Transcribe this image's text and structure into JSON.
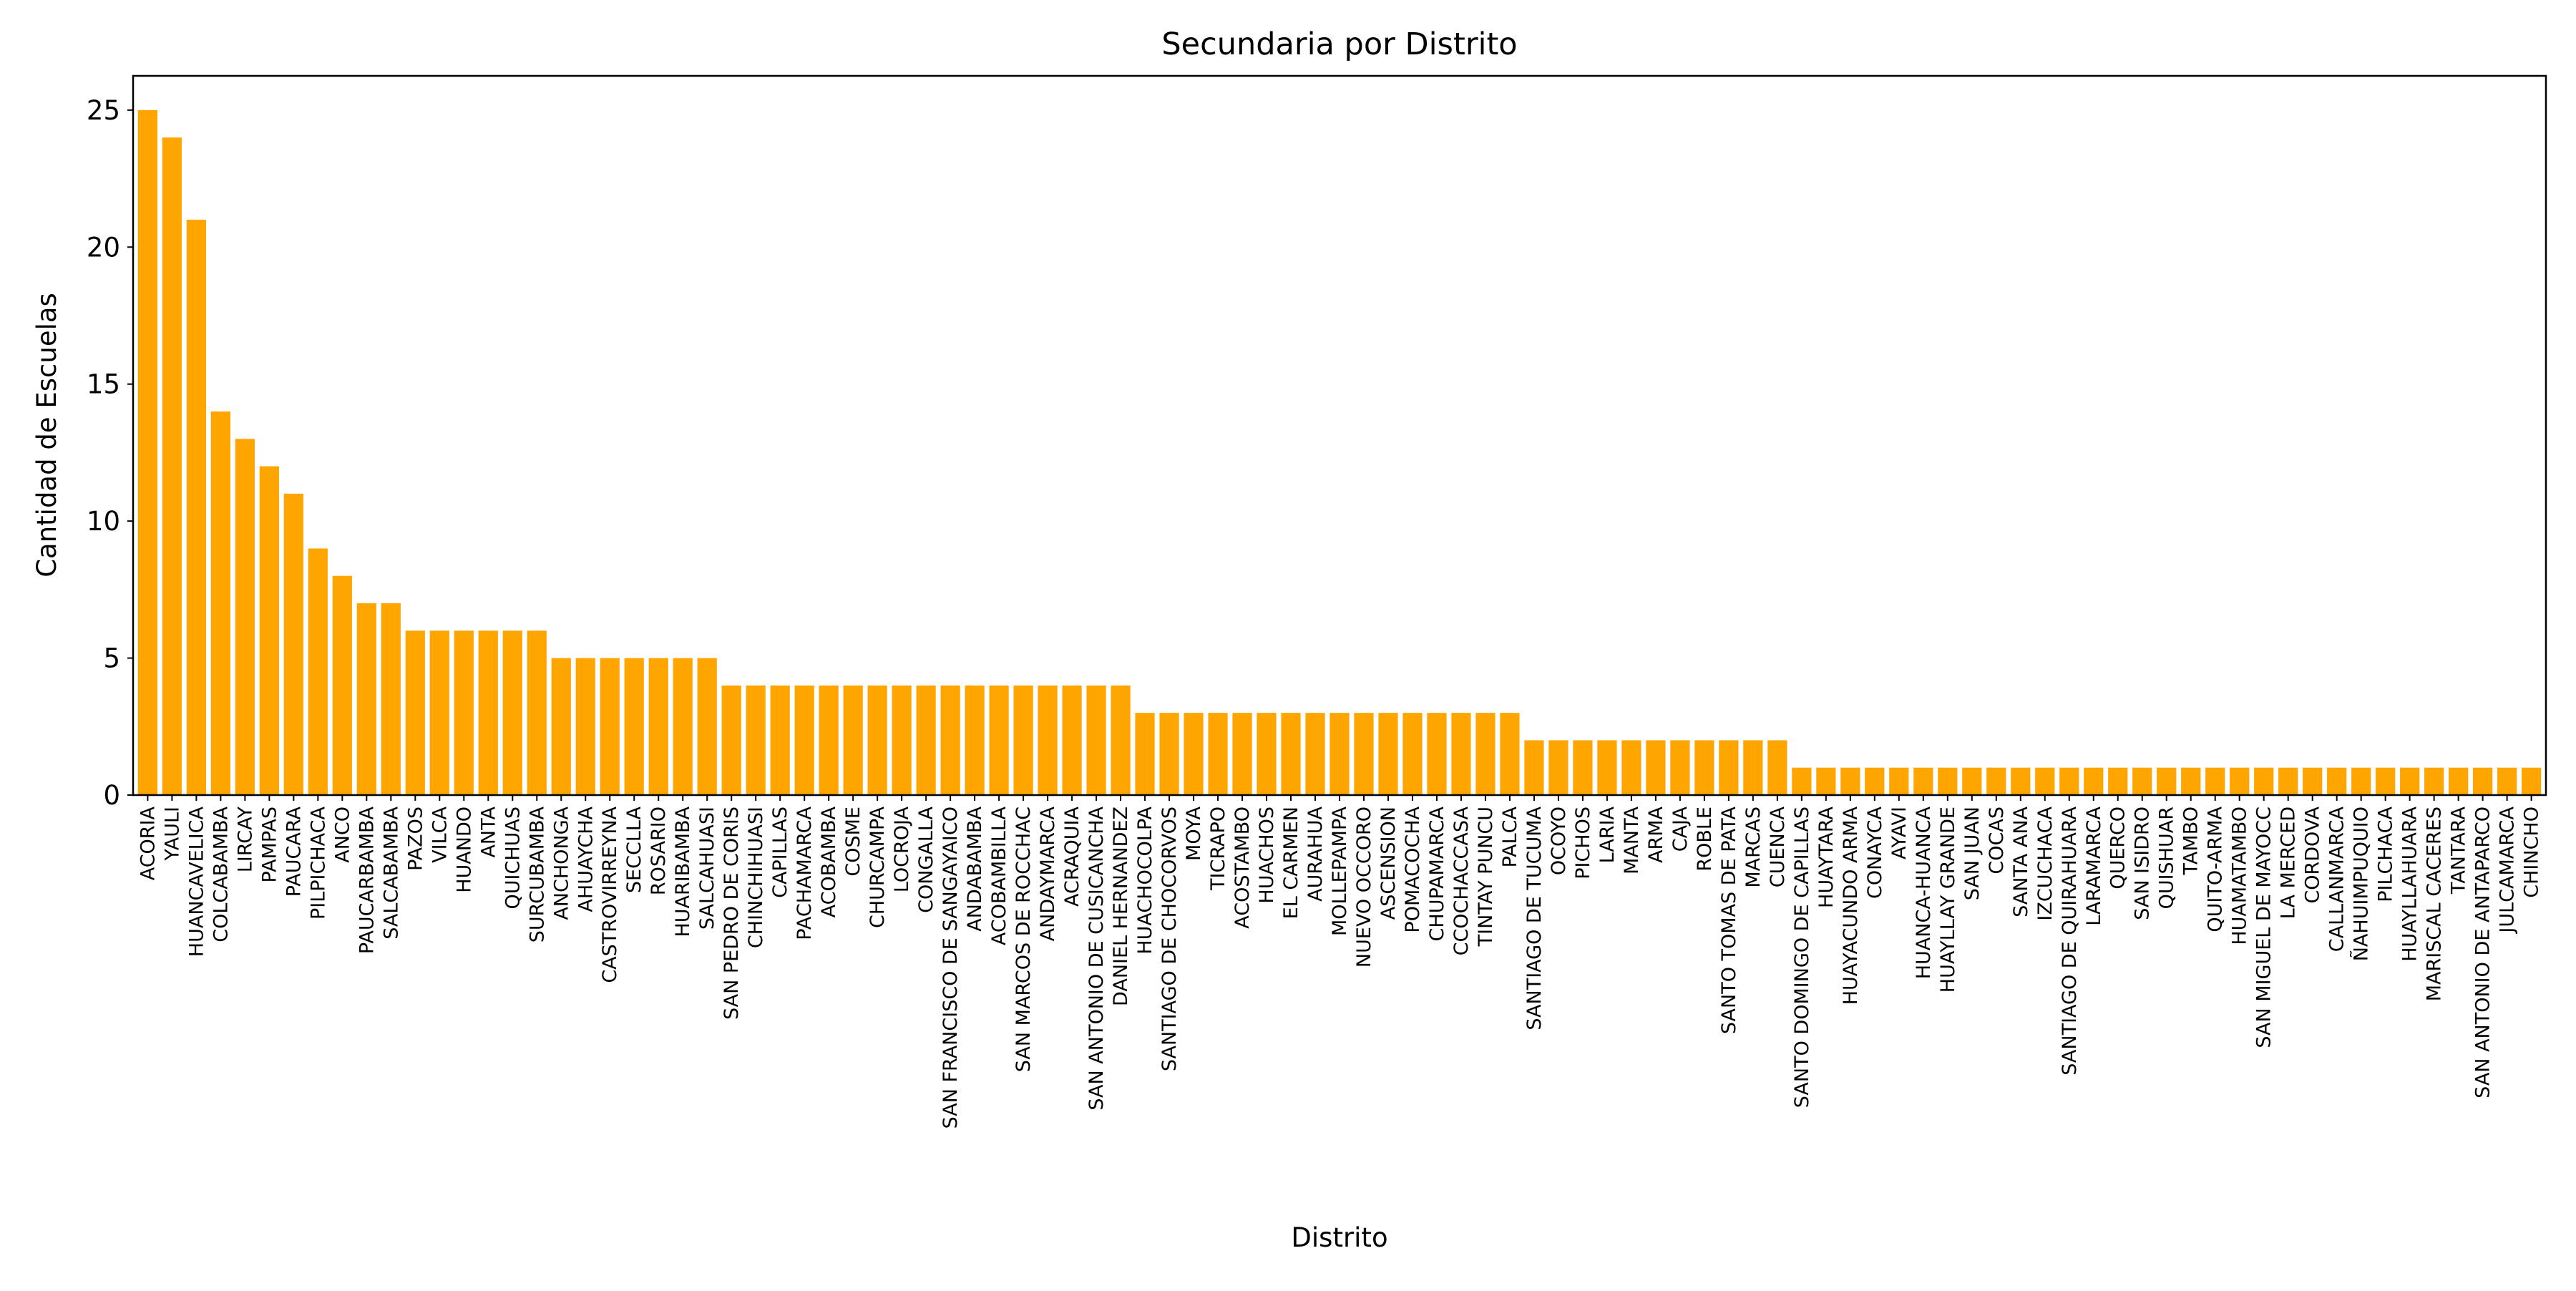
{
  "colors": {
    "bar": "#FFA500",
    "axis": "#000000",
    "background": "#FFFFFF"
  },
  "chart_data": {
    "type": "bar",
    "title": "Secundaria por Distrito",
    "xlabel": "Distrito",
    "ylabel": "Cantidad de Escuelas",
    "ylim": [
      0,
      26.25
    ],
    "yticks": [
      0,
      5,
      10,
      15,
      20,
      25
    ],
    "grid": false,
    "legend": "none",
    "categories": [
      "ACORIA",
      "YAULI",
      "HUANCAVELICA",
      "COLCABAMBA",
      "LIRCAY",
      "PAMPAS",
      "PAUCARA",
      "PILPICHACA",
      "ANCO",
      "PAUCARBAMBA",
      "SALCABAMBA",
      "PAZOS",
      "VILCA",
      "HUANDO",
      "ANTA",
      "QUICHUAS",
      "SURCUBAMBA",
      "ANCHONGA",
      "AHUAYCHA",
      "CASTROVIRREYNA",
      "SECCLLA",
      "ROSARIO",
      "HUARIBAMBA",
      "SALCAHUASI",
      "SAN PEDRO DE CORIS",
      "CHINCHIHUASI",
      "CAPILLAS",
      "PACHAMARCA",
      "ACOBAMBA",
      "COSME",
      "CHURCAMPA",
      "LOCROJA",
      "CONGALLA",
      "SAN FRANCISCO DE SANGAYAICO",
      "ANDABAMBA",
      "ACOBAMBILLA",
      "SAN MARCOS DE ROCCHAC",
      "ANDAYMARCA",
      "ACRAQUIA",
      "SAN ANTONIO DE CUSICANCHA",
      "DANIEL HERNANDEZ",
      "HUACHOCOLPA",
      "SANTIAGO DE CHOCORVOS",
      "MOYA",
      "TICRAPO",
      "ACOSTAMBO",
      "HUACHOS",
      "EL CARMEN",
      "AURAHUA",
      "MOLLEPAMPA",
      "NUEVO OCCORO",
      "ASCENSION",
      "POMACOCHA",
      "CHUPAMARCA",
      "CCOCHACCASA",
      "TINTAY PUNCU",
      "PALCA",
      "SANTIAGO DE TUCUMA",
      "OCOYO",
      "PICHOS",
      "LARIA",
      "MANTA",
      "ARMA",
      "CAJA",
      "ROBLE",
      "SANTO TOMAS DE PATA",
      "MARCAS",
      "CUENCA",
      "SANTO DOMINGO DE CAPILLAS",
      "HUAYTARA",
      "HUAYACUNDO ARMA",
      "CONAYCA",
      "AYAVI",
      "HUANCA-HUANCA",
      "HUAYLLAY GRANDE",
      "SAN JUAN",
      "COCAS",
      "SANTA ANA",
      "IZCUCHACA",
      "SANTIAGO DE QUIRAHUARA",
      "LARAMARCA",
      "QUERCO",
      "SAN ISIDRO",
      "QUISHUAR",
      "TAMBO",
      "QUITO-ARMA",
      "HUAMATAMBO",
      "SAN MIGUEL DE MAYOCC",
      "LA MERCED",
      "CORDOVA",
      "CALLANMARCA",
      "ÑAHUIMPUQUIO",
      "PILCHACA",
      "HUAYLLAHUARA",
      "MARISCAL CACERES",
      "TANTARA",
      "SAN ANTONIO DE ANTAPARCO",
      "JULCAMARCA",
      "CHINCHO"
    ],
    "values": [
      25,
      24,
      21,
      14,
      13,
      12,
      11,
      9,
      8,
      7,
      7,
      6,
      6,
      6,
      6,
      6,
      6,
      5,
      5,
      5,
      5,
      5,
      5,
      5,
      4,
      4,
      4,
      4,
      4,
      4,
      4,
      4,
      4,
      4,
      4,
      4,
      4,
      4,
      4,
      4,
      4,
      3,
      3,
      3,
      3,
      3,
      3,
      3,
      3,
      3,
      3,
      3,
      3,
      3,
      3,
      3,
      3,
      2,
      2,
      2,
      2,
      2,
      2,
      2,
      2,
      2,
      2,
      2,
      1,
      1,
      1,
      1,
      1,
      1,
      1,
      1,
      1,
      1,
      1,
      1,
      1,
      1,
      1,
      1,
      1,
      1,
      1,
      1,
      1,
      1,
      1,
      1,
      1,
      1,
      1,
      1,
      1,
      1,
      1
    ]
  }
}
